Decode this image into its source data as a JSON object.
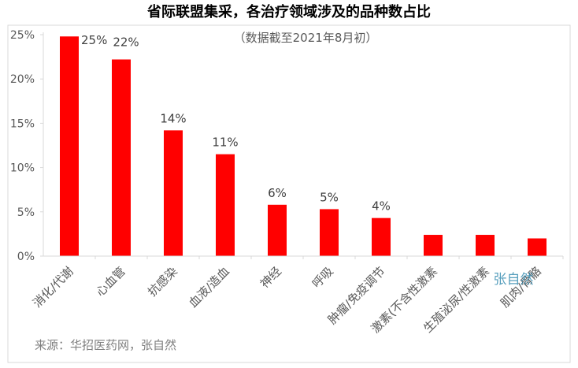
{
  "chart_data": {
    "type": "bar",
    "title": "省际联盟集采，各治疗领域涉及的品种数占比",
    "subtitle": "（数据截至2021年8月初）",
    "xlabel": "",
    "ylabel": "",
    "ylim": [
      0,
      0.25
    ],
    "y_ticks": [
      0,
      0.05,
      0.1,
      0.15,
      0.2,
      0.25
    ],
    "y_tick_labels": [
      "0%",
      "5%",
      "10%",
      "15%",
      "20%",
      "25%"
    ],
    "grid": false,
    "legend": "none",
    "categories": [
      "消化/代谢",
      "心血管",
      "抗感染",
      "血液/造血",
      "神经",
      "呼吸",
      "肿瘤/免疫调节",
      "激素(不含性激素",
      "生殖泌尿/性激素",
      "肌肉/骨骼"
    ],
    "values": [
      0.248,
      0.222,
      0.142,
      0.115,
      0.058,
      0.053,
      0.043,
      0.024,
      0.024,
      0.02
    ],
    "data_labels": [
      "25%",
      "22%",
      "14%",
      "11%",
      "6%",
      "5%",
      "4%",
      "",
      "",
      ""
    ],
    "bar_color": "#ff0000",
    "source": "来源：华招医药网，张自然",
    "watermark": "张自然"
  },
  "colors": {
    "bar": "#ff0000",
    "axis": "#d9d9d9",
    "text": "#595959"
  }
}
